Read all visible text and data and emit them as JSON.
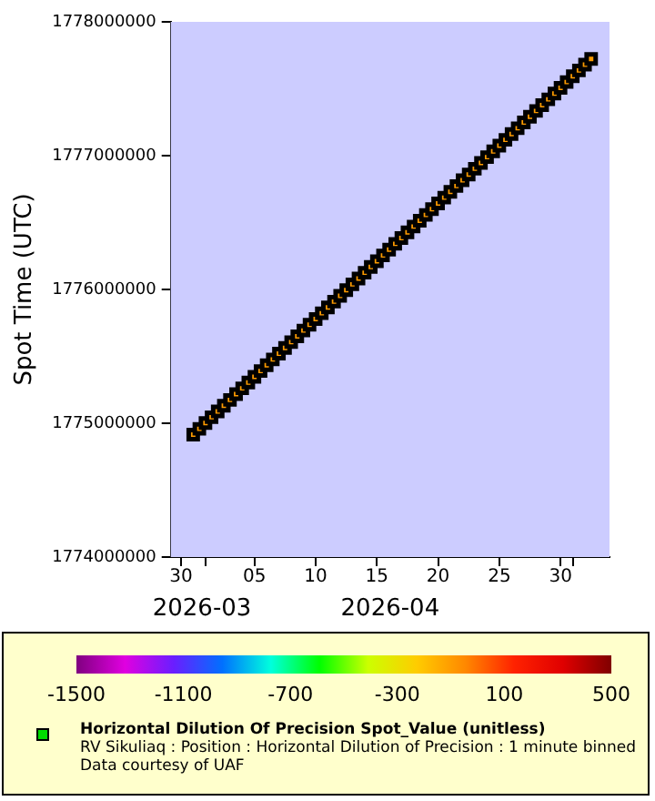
{
  "chart_data": {
    "type": "scatter",
    "ylabel": "Spot Time (UTC)",
    "clabel": "Horizontal Dilution Of Precision Spot_Value (unitless)",
    "x": [
      "2026-03-31T00:00",
      "2026-03-31T12:00",
      "2026-04-01T00:00",
      "2026-04-01T12:00",
      "2026-04-02T00:00",
      "2026-04-02T12:00",
      "2026-04-03T00:00",
      "2026-04-03T12:00",
      "2026-04-04T00:00",
      "2026-04-04T12:00",
      "2026-04-05T00:00",
      "2026-04-05T12:00",
      "2026-04-06T00:00",
      "2026-04-06T12:00",
      "2026-04-07T00:00",
      "2026-04-07T12:00",
      "2026-04-08T00:00",
      "2026-04-08T12:00",
      "2026-04-09T00:00",
      "2026-04-09T12:00",
      "2026-04-10T00:00",
      "2026-04-10T12:00",
      "2026-04-11T00:00",
      "2026-04-11T12:00",
      "2026-04-12T00:00",
      "2026-04-12T12:00",
      "2026-04-13T00:00",
      "2026-04-13T12:00",
      "2026-04-14T00:00",
      "2026-04-14T12:00",
      "2026-04-15T00:00",
      "2026-04-15T12:00",
      "2026-04-16T00:00",
      "2026-04-16T12:00",
      "2026-04-17T00:00",
      "2026-04-17T12:00",
      "2026-04-18T00:00",
      "2026-04-18T12:00",
      "2026-04-19T00:00",
      "2026-04-19T12:00",
      "2026-04-20T00:00",
      "2026-04-20T12:00",
      "2026-04-21T00:00",
      "2026-04-21T12:00",
      "2026-04-22T00:00",
      "2026-04-22T12:00",
      "2026-04-23T00:00",
      "2026-04-23T12:00",
      "2026-04-24T00:00",
      "2026-04-24T12:00",
      "2026-04-25T00:00",
      "2026-04-25T12:00",
      "2026-04-26T00:00",
      "2026-04-26T12:00",
      "2026-04-27T00:00",
      "2026-04-27T12:00",
      "2026-04-28T00:00",
      "2026-04-28T12:00",
      "2026-04-29T00:00",
      "2026-04-29T12:00",
      "2026-04-30T00:00",
      "2026-04-30T12:00",
      "2026-05-01T00:00",
      "2026-05-01T12:00",
      "2026-05-02T00:00",
      "2026-05-02T12:00"
    ],
    "values": [
      1774915200,
      1774958400,
      1775001600,
      1775044800,
      1775088000,
      1775131200,
      1775174400,
      1775217600,
      1775260800,
      1775304000,
      1775347200,
      1775390400,
      1775433600,
      1775476800,
      1775520000,
      1775563200,
      1775606400,
      1775649600,
      1775692800,
      1775736000,
      1775779200,
      1775822400,
      1775865600,
      1775908800,
      1775952000,
      1775995200,
      1776038400,
      1776081600,
      1776124800,
      1776168000,
      1776211200,
      1776254400,
      1776297600,
      1776340800,
      1776384000,
      1776427200,
      1776470400,
      1776513600,
      1776556800,
      1776600000,
      1776643200,
      1776686400,
      1776729600,
      1776772800,
      1776816000,
      1776859200,
      1776902400,
      1776945600,
      1776988800,
      1777032000,
      1777075200,
      1777118400,
      1777161600,
      1777204800,
      1777248000,
      1777291200,
      1777334400,
      1777377600,
      1777420800,
      1777464000,
      1777507200,
      1777550400,
      1777593600,
      1777636800,
      1777680000,
      1777723200
    ],
    "cvalues": [
      -100,
      -100,
      -100,
      -100,
      -100,
      -100,
      -100,
      -100,
      -100,
      -100,
      -100,
      -100,
      -100,
      -100,
      -100,
      -100,
      -100,
      -100,
      -100,
      -100,
      -100,
      -100,
      -100,
      -100,
      -100,
      -100,
      -100,
      -100,
      -100,
      -100,
      -100,
      -100,
      -100,
      -100,
      -100,
      -100,
      -100,
      -100,
      -100,
      -100,
      -100,
      -100,
      -100,
      -100,
      -100,
      -100,
      -100,
      -100,
      -100,
      -100,
      -100,
      -100,
      -100,
      -100,
      -100,
      -100,
      -100,
      -100,
      -100,
      -100,
      -100,
      -100,
      -100,
      -100,
      -100,
      -100
    ],
    "marker": "square",
    "xlim": [
      "2026-03-29T04:00",
      "2026-05-04T00:00"
    ],
    "xticks": [
      {
        "value": "2026-03-30",
        "label": "30"
      },
      {
        "value": "2026-04-01",
        "label": null
      },
      {
        "value": "2026-04-05",
        "label": "05"
      },
      {
        "value": "2026-04-10",
        "label": "10"
      },
      {
        "value": "2026-04-15",
        "label": "15"
      },
      {
        "value": "2026-04-20",
        "label": "20"
      },
      {
        "value": "2026-04-25",
        "label": "25"
      },
      {
        "value": "2026-04-30",
        "label": "30"
      },
      {
        "value": "2026-05-01",
        "label": null
      }
    ],
    "ylim": [
      1774000000,
      1778000000
    ],
    "yticks": [
      1774000000,
      1775000000,
      1776000000,
      1777000000,
      1778000000
    ],
    "clim": [
      -1500,
      500
    ],
    "cticks": [
      -1500,
      -1100,
      -700,
      -300,
      100,
      500
    ],
    "grid": false,
    "legend": false,
    "annotations": [
      "2026-03",
      "2026-04",
      "RV Sikuliaq : Position : Horizontal Dilution of Precision : 1 minute binned",
      "Data courtesy of UAF"
    ]
  }
}
